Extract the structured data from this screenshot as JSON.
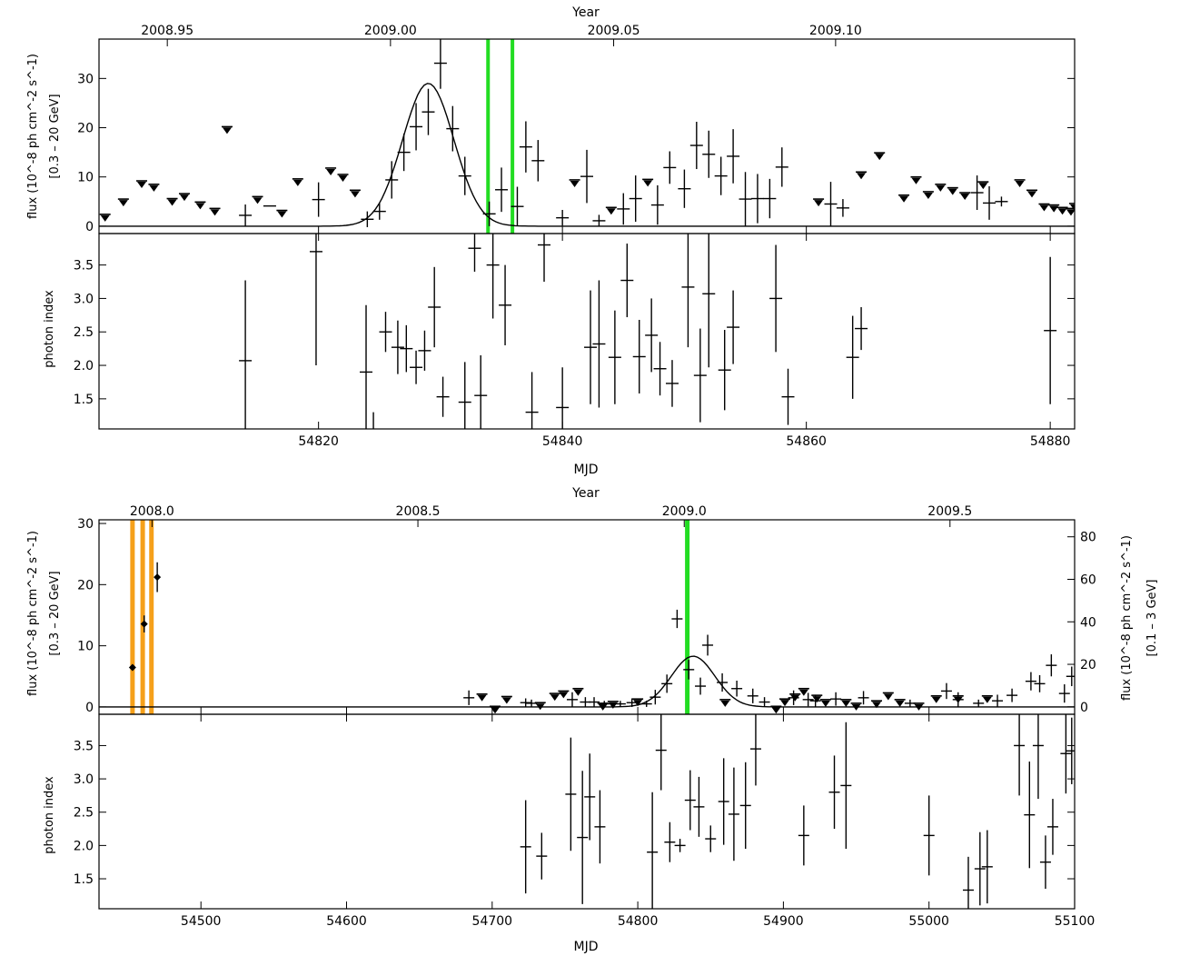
{
  "chart_data": [
    {
      "type": "scatter",
      "x_top_label": "Year",
      "x_top_ticks": [
        "2008.95",
        "2009.00",
        "2009.05",
        "2009.10"
      ],
      "x_top_tick_mjd": [
        54807.6,
        54825.9,
        54844.2,
        54862.4
      ],
      "xlabel": "MJD",
      "xlim": [
        54802,
        54882
      ],
      "x_ticks": [
        54820,
        54840,
        54860,
        54880
      ],
      "flux_panel": {
        "ylabel": "flux (10^-8 ph cm^-2 s^-1)",
        "ylabel2": "[0.3 – 20 GeV]",
        "ylim": [
          -1.5,
          38
        ],
        "y_ticks": [
          0,
          10,
          20,
          30
        ],
        "points": [
          [
            54814.0,
            2.2,
            2.2
          ],
          [
            54816.0,
            4.1,
            0.0
          ],
          [
            54820.0,
            5.4,
            3.5
          ],
          [
            54824.0,
            1.4,
            1.6
          ],
          [
            54825.0,
            3.0,
            1.7
          ],
          [
            54826.0,
            9.4,
            3.8
          ],
          [
            54827.0,
            15.0,
            3.8
          ],
          [
            54828.0,
            20.2,
            4.8
          ],
          [
            54829.0,
            23.2,
            4.7
          ],
          [
            54830.0,
            33.1,
            5.2
          ],
          [
            54831.0,
            19.8,
            4.6
          ],
          [
            54832.0,
            10.2,
            3.9
          ],
          [
            54834.0,
            2.5,
            2.5
          ],
          [
            54835.0,
            7.4,
            4.5
          ],
          [
            54836.3,
            4.0,
            4.0
          ],
          [
            54837.0,
            16.1,
            5.2
          ],
          [
            54838.0,
            13.3,
            4.2
          ],
          [
            54840.0,
            1.7,
            1.6
          ],
          [
            54842.0,
            10.1,
            5.4
          ],
          [
            54843.0,
            1.1,
            1.2
          ],
          [
            54845.0,
            3.5,
            3.2
          ],
          [
            54846.0,
            5.6,
            4.7
          ],
          [
            54847.8,
            4.3,
            4.0
          ],
          [
            54848.8,
            11.9,
            3.3
          ],
          [
            54850.0,
            7.6,
            3.9
          ],
          [
            54851.0,
            16.4,
            4.8
          ],
          [
            54852.0,
            14.6,
            4.8
          ],
          [
            54853.0,
            10.2,
            3.9
          ],
          [
            54854.0,
            14.2,
            5.5
          ],
          [
            54855.0,
            5.5,
            5.5
          ],
          [
            54856.0,
            5.6,
            5.0
          ],
          [
            54857.0,
            5.6,
            4.0
          ],
          [
            54858.0,
            12.0,
            4.0
          ],
          [
            54862.0,
            4.5,
            4.5
          ],
          [
            54863.0,
            3.7,
            1.8
          ],
          [
            54874.0,
            6.8,
            3.5
          ],
          [
            54875.0,
            4.7,
            3.4
          ],
          [
            54876.0,
            5.0,
            1.0
          ]
        ],
        "upper_limits": [
          [
            54802.5,
            2.4
          ],
          [
            54804.0,
            5.5
          ],
          [
            54805.5,
            9.2
          ],
          [
            54806.5,
            8.5
          ],
          [
            54808.0,
            5.6
          ],
          [
            54809.0,
            6.6
          ],
          [
            54810.3,
            4.9
          ],
          [
            54811.5,
            3.6
          ],
          [
            54812.5,
            20.2
          ],
          [
            54815.0,
            6.0
          ],
          [
            54817.0,
            3.2
          ],
          [
            54818.3,
            9.6
          ],
          [
            54821.0,
            11.8
          ],
          [
            54822.0,
            10.5
          ],
          [
            54823.0,
            7.3
          ],
          [
            54841.0,
            9.4
          ],
          [
            54844.0,
            3.8
          ],
          [
            54847.0,
            9.5
          ],
          [
            54861.0,
            5.5
          ],
          [
            54864.5,
            11.0
          ],
          [
            54866.0,
            14.9
          ],
          [
            54868.0,
            6.3
          ],
          [
            54869.0,
            10.0
          ],
          [
            54870.0,
            7.0
          ],
          [
            54871.0,
            8.5
          ],
          [
            54872.0,
            7.8
          ],
          [
            54873.0,
            6.8
          ],
          [
            54874.5,
            9.0
          ],
          [
            54877.5,
            9.4
          ],
          [
            54878.5,
            7.3
          ],
          [
            54879.5,
            4.5
          ],
          [
            54880.3,
            4.3
          ],
          [
            54881.0,
            3.8
          ],
          [
            54881.7,
            3.6
          ],
          [
            54882.0,
            4.6
          ]
        ],
        "green_lines": [
          54833.9,
          54835.9
        ],
        "gaussian": {
          "amplitude": 29,
          "center": 54829,
          "sigma": 2.1
        }
      },
      "index_panel": {
        "ylabel": "photon index",
        "ylim": [
          1.05,
          3.97
        ],
        "y_ticks": [
          1.5,
          2.0,
          2.5,
          3.0,
          3.5
        ],
        "points": [
          [
            54814.0,
            2.07,
            1.2
          ],
          [
            54819.8,
            3.7,
            1.7
          ],
          [
            54823.9,
            1.9,
            1.0
          ],
          [
            54824.5,
            1.0,
            0.3
          ],
          [
            54825.5,
            2.5,
            0.3
          ],
          [
            54826.5,
            2.27,
            0.4
          ],
          [
            54827.2,
            2.25,
            0.35
          ],
          [
            54828.0,
            1.97,
            0.25
          ],
          [
            54828.7,
            2.22,
            0.3
          ],
          [
            54829.5,
            2.87,
            0.6
          ],
          [
            54830.2,
            1.53,
            0.3
          ],
          [
            54832.0,
            1.45,
            0.6
          ],
          [
            54832.8,
            3.75,
            0.35
          ],
          [
            54833.3,
            1.55,
            0.6
          ],
          [
            54834.3,
            3.5,
            0.8
          ],
          [
            54835.3,
            2.9,
            0.6
          ],
          [
            54837.5,
            1.3,
            0.6
          ],
          [
            54838.5,
            3.8,
            0.55
          ],
          [
            54840.0,
            1.37,
            0.6
          ],
          [
            54842.3,
            2.27,
            0.85
          ],
          [
            54843.0,
            2.32,
            0.95
          ],
          [
            54844.3,
            2.12,
            0.7
          ],
          [
            54845.3,
            3.27,
            0.55
          ],
          [
            54846.3,
            2.13,
            0.55
          ],
          [
            54847.3,
            2.45,
            0.55
          ],
          [
            54848.0,
            1.95,
            0.4
          ],
          [
            54849.0,
            1.73,
            0.35
          ],
          [
            54850.3,
            3.17,
            0.9
          ],
          [
            54851.3,
            1.85,
            0.7
          ],
          [
            54852.0,
            3.07,
            1.1
          ],
          [
            54853.3,
            1.93,
            0.6
          ],
          [
            54854.0,
            2.57,
            0.55
          ],
          [
            54857.5,
            3.0,
            0.8
          ],
          [
            54858.5,
            1.53,
            0.42
          ],
          [
            54863.8,
            2.12,
            0.62
          ],
          [
            54864.5,
            2.55,
            0.32
          ],
          [
            54880.0,
            2.52,
            1.1
          ]
        ]
      }
    },
    {
      "type": "scatter",
      "x_top_label": "Year",
      "x_top_ticks": [
        "2008.0",
        "2008.5",
        "2009.0",
        "2009.5"
      ],
      "x_top_tick_mjd": [
        54466.4,
        54649.0,
        54831.9,
        55014.4
      ],
      "xlabel": "MJD",
      "xlim": [
        54430,
        55100
      ],
      "x_ticks": [
        54500,
        54600,
        54700,
        54800,
        54900,
        55000,
        55100
      ],
      "flux_panel": {
        "ylabel": "flux (10^-8 ph cm^-2 s^-1)",
        "ylabel2": "[0.3 – 20 GeV]",
        "ylabel_right": "flux (10^-8 ph cm^-2 s^-1)",
        "ylabel_right2": "[0.1 – 3 GeV]",
        "ylim": [
          -1.2,
          30.6
        ],
        "y_ticks": [
          0,
          10,
          20,
          30
        ],
        "right_ylim": [
          -3.5,
          88
        ],
        "right_y_ticks": [
          0,
          20,
          40,
          60,
          80
        ],
        "points": [
          [
            54684,
            1.5,
            1.2
          ],
          [
            54723,
            0.7,
            0.7
          ],
          [
            54727,
            0.6,
            0.6
          ],
          [
            54755,
            1.2,
            1.2
          ],
          [
            54764,
            0.8,
            0.8
          ],
          [
            54770,
            0.8,
            0.8
          ],
          [
            54777,
            0.5,
            0.5
          ],
          [
            54788,
            0.5,
            0.5
          ],
          [
            54796,
            0.7,
            0.7
          ],
          [
            54806,
            0.5,
            0.5
          ],
          [
            54812,
            1.6,
            1.2
          ],
          [
            54820,
            3.8,
            1.5
          ],
          [
            54827,
            14.4,
            1.5
          ],
          [
            54835,
            6.1,
            1.6
          ],
          [
            54843,
            3.4,
            1.4
          ],
          [
            54848,
            10.1,
            1.7
          ],
          [
            54858,
            4.0,
            1.5
          ],
          [
            54868,
            3.0,
            1.3
          ],
          [
            54879,
            1.8,
            1.2
          ],
          [
            54887,
            0.8,
            0.8
          ],
          [
            54907,
            1.5,
            1.2
          ],
          [
            54917,
            1.2,
            1.1
          ],
          [
            54922,
            1.0,
            1.0
          ],
          [
            54936,
            1.3,
            1.1
          ],
          [
            54955,
            1.5,
            1.1
          ],
          [
            54987,
            0.6,
            0.6
          ],
          [
            55012,
            2.6,
            1.3
          ],
          [
            55020,
            1.2,
            1.2
          ],
          [
            55034,
            0.6,
            0.6
          ],
          [
            55047,
            1.0,
            1.0
          ],
          [
            55057,
            1.9,
            1.1
          ],
          [
            55070,
            4.2,
            1.5
          ],
          [
            55076,
            3.8,
            1.4
          ],
          [
            55084,
            6.8,
            1.8
          ],
          [
            55093,
            2.2,
            1.5
          ],
          [
            55098,
            5.0,
            1.6
          ]
        ],
        "upper_limits": [
          [
            54693,
            2.1
          ],
          [
            54702,
            0.1
          ],
          [
            54710,
            1.7
          ],
          [
            54733,
            0.7
          ],
          [
            54743,
            2.2
          ],
          [
            54749,
            2.6
          ],
          [
            54759,
            3.0
          ],
          [
            54776,
            0.6
          ],
          [
            54783,
            0.9
          ],
          [
            54800,
            1.3
          ],
          [
            54860,
            1.2
          ],
          [
            54895,
            0.1
          ],
          [
            54901,
            1.3
          ],
          [
            54908,
            2.1
          ],
          [
            54914,
            3.0
          ],
          [
            54923,
            1.9
          ],
          [
            54929,
            1.2
          ],
          [
            54943,
            1.2
          ],
          [
            54950,
            0.6
          ],
          [
            54964,
            1.0
          ],
          [
            54972,
            2.3
          ],
          [
            54980,
            1.2
          ],
          [
            54993,
            0.6
          ],
          [
            55005,
            1.8
          ],
          [
            55020,
            1.8
          ],
          [
            55040,
            1.8
          ]
        ],
        "right_axis_points": [
          [
            54453,
            18.5,
            0.0
          ],
          [
            54461,
            39.0,
            4.0
          ],
          [
            54470,
            61.0,
            7.0
          ]
        ],
        "green_lines": [
          54834
        ],
        "orange_lines": [
          54453,
          54460,
          54466
        ],
        "gaussian": {
          "amplitude": 8.3,
          "center": 54838,
          "sigma": 15
        }
      },
      "index_panel": {
        "ylabel": "photon index",
        "ylim": [
          1.05,
          3.97
        ],
        "y_ticks": [
          1.5,
          2.0,
          2.5,
          3.0,
          3.5
        ],
        "points": [
          [
            54723,
            1.98,
            0.7
          ],
          [
            54734,
            1.84,
            0.35
          ],
          [
            54754,
            2.77,
            0.85
          ],
          [
            54762,
            2.12,
            1.0
          ],
          [
            54767,
            2.73,
            0.65
          ],
          [
            54774,
            2.28,
            0.55
          ],
          [
            54810,
            1.9,
            0.9
          ],
          [
            54816,
            3.43,
            0.6
          ],
          [
            54822,
            2.05,
            0.3
          ],
          [
            54829,
            2.0,
            0.1
          ],
          [
            54836,
            2.68,
            0.45
          ],
          [
            54842,
            2.58,
            0.45
          ],
          [
            54850,
            2.1,
            0.2
          ],
          [
            54859,
            2.66,
            0.65
          ],
          [
            54866,
            2.47,
            0.7
          ],
          [
            54874,
            2.6,
            0.65
          ],
          [
            54881,
            3.45,
            0.55
          ],
          [
            54914,
            2.15,
            0.45
          ],
          [
            54935,
            2.8,
            0.55
          ],
          [
            54943,
            2.9,
            0.95
          ],
          [
            55000,
            2.15,
            0.6
          ],
          [
            55027,
            1.33,
            0.5
          ],
          [
            55035,
            1.65,
            0.55
          ],
          [
            55040,
            1.68,
            0.55
          ],
          [
            55062,
            3.5,
            0.75
          ],
          [
            55069,
            2.46,
            0.8
          ],
          [
            55075,
            3.5,
            0.8
          ],
          [
            55080,
            1.75,
            0.4
          ],
          [
            55085,
            2.28,
            0.42
          ],
          [
            55094,
            3.38,
            0.6
          ],
          [
            55098,
            3.42,
            0.5
          ]
        ]
      }
    }
  ]
}
